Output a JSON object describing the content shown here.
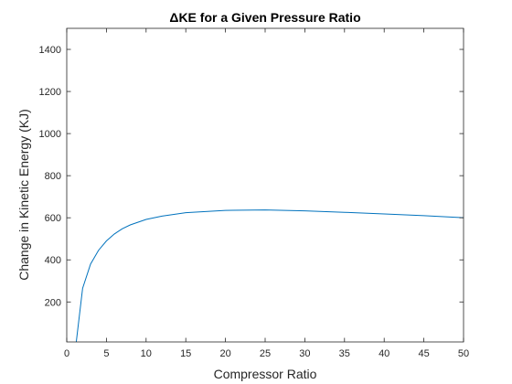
{
  "chart_data": {
    "type": "line",
    "title": "ΔKE for a Given Pressure Ratio",
    "xlabel": "Compressor Ratio",
    "ylabel": "Change in Kinetic Energy (KJ)",
    "xlim": [
      0,
      50
    ],
    "ylim": [
      10,
      1500
    ],
    "x_ticks": [
      0,
      5,
      10,
      15,
      20,
      25,
      30,
      35,
      40,
      45,
      50
    ],
    "y_ticks": [
      200,
      400,
      600,
      800,
      1000,
      1200,
      1400
    ],
    "x_tick_labels": [
      "0",
      "5",
      "10",
      "15",
      "20",
      "25",
      "30",
      "35",
      "40",
      "45",
      "50"
    ],
    "y_tick_labels": [
      "200",
      "400",
      "600",
      "800",
      "1000",
      "1200",
      "1400"
    ],
    "grid": false,
    "line_color": "#0072BD",
    "axis_color": "#262626",
    "series": [
      {
        "x": [
          1.2,
          2,
          3,
          4,
          5,
          6,
          7,
          8,
          10,
          12,
          15,
          20,
          25,
          30,
          35,
          40,
          45,
          50
        ],
        "y": [
          10,
          265,
          380,
          445,
          490,
          523,
          548,
          566,
          592,
          608,
          624,
          635,
          637,
          633,
          626,
          618,
          610,
          600
        ]
      }
    ]
  }
}
